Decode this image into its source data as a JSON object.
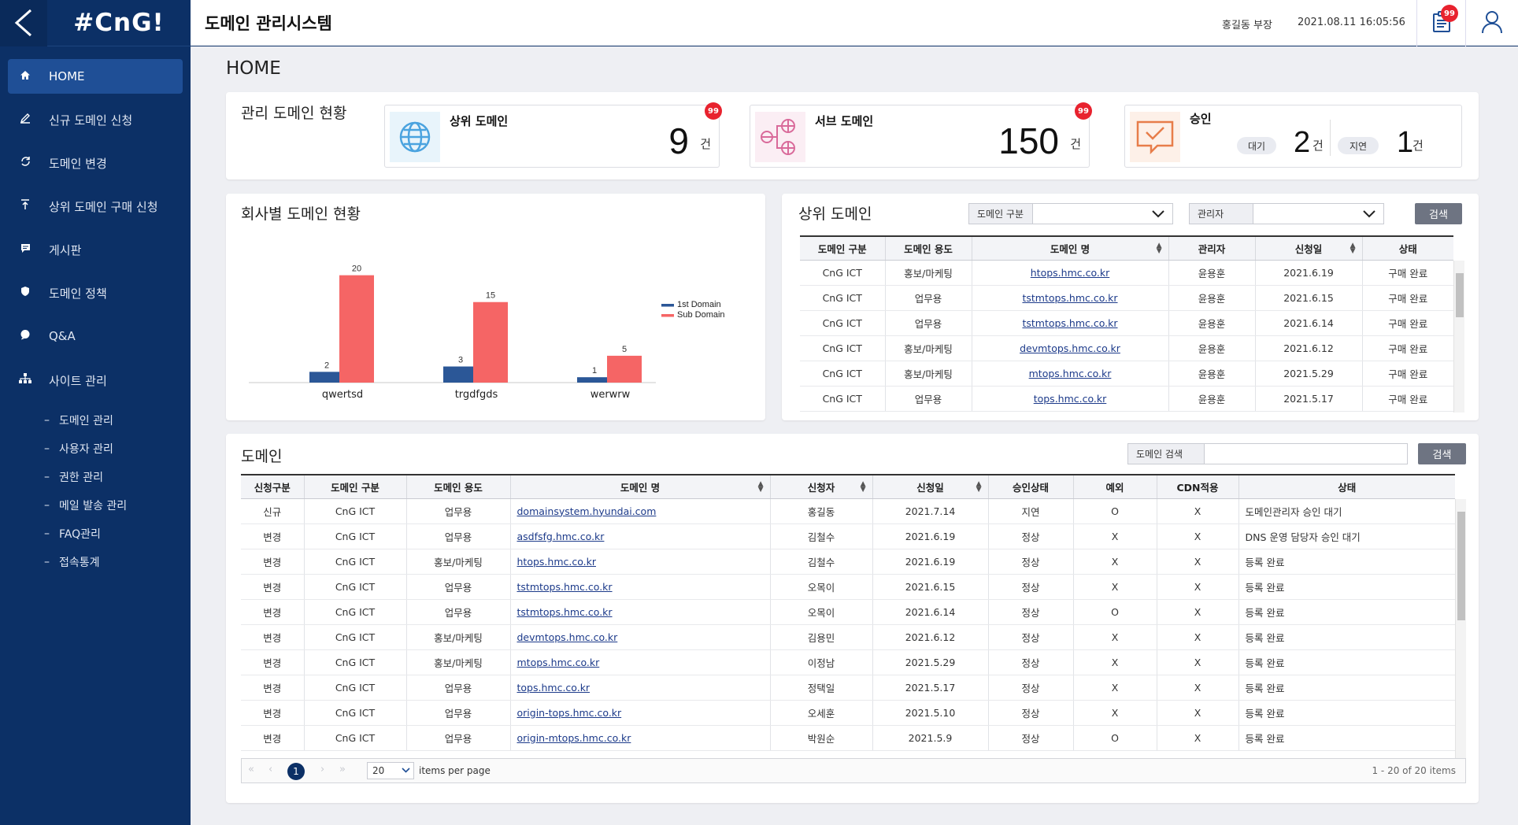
{
  "sidebar": {
    "logo": "#CnG!",
    "back_icon": "chevron-left-icon",
    "items": [
      {
        "label": "HOME",
        "icon": "home-icon",
        "active": true
      },
      {
        "label": "신규 도메인 신청",
        "icon": "pen-icon"
      },
      {
        "label": "도메인 변경",
        "icon": "swap-icon"
      },
      {
        "label": "상위 도메인 구매 신청",
        "icon": "upload-icon"
      },
      {
        "label": "게시판",
        "icon": "board-icon"
      },
      {
        "label": "도메인 정책",
        "icon": "shield-icon"
      },
      {
        "label": "Q&A",
        "icon": "chat-icon"
      }
    ],
    "site_admin": {
      "label": "사이트 관리",
      "icon": "sitemap-icon",
      "sub_items": [
        "도메인 관리",
        "사용자 관리",
        "권한 관리",
        "메일 발송 관리",
        "FAQ관리",
        "접속통계"
      ]
    }
  },
  "topbar": {
    "title": "도메인 관리시스템",
    "user": "홍길동 부장",
    "datetime": "2021.08.11  16:05:56",
    "notice_badge": "99"
  },
  "page_heading": "HOME",
  "summary": {
    "title": "관리 도메인 현황",
    "top_domain": {
      "label": "상위 도메인",
      "count": "9",
      "unit": "건",
      "badge": "99"
    },
    "sub_domain": {
      "label": "서브 도메인",
      "count": "150",
      "unit": "건",
      "badge": "99"
    },
    "approval": {
      "label": "승인",
      "wait_label": "대기",
      "wait_count": "2",
      "delay_label": "지연",
      "delay_count": "1",
      "unit": "건"
    }
  },
  "company_chart": {
    "title": "회사별 도메인 현황",
    "chart_data": {
      "type": "bar",
      "categories": [
        "qwertsd",
        "trgdfgds",
        "werwrw"
      ],
      "series": [
        {
          "name": "1st Domain",
          "values": [
            2,
            3,
            1
          ],
          "color": "#2b5797"
        },
        {
          "name": "Sub Domain",
          "values": [
            20,
            15,
            5
          ],
          "color": "#f56565"
        }
      ],
      "ylim": [
        0,
        22
      ],
      "legend": "right",
      "grid": false
    }
  },
  "top_domains": {
    "title": "상위 도메인",
    "filter1_label": "도메인 구분",
    "filter2_label": "관리자",
    "search_btn": "검색",
    "columns": [
      "도메인 구분",
      "도메인 용도",
      "도메인 명",
      "관리자",
      "신청일",
      "상태"
    ],
    "rows": [
      [
        "CnG ICT",
        "홍보/마케팅",
        "htops.hmc.co.kr",
        "윤용훈",
        "2021.6.19",
        "구매 완료"
      ],
      [
        "CnG ICT",
        "업무용",
        "tstmtops.hmc.co.kr",
        "윤용훈",
        "2021.6.15",
        "구매 완료"
      ],
      [
        "CnG ICT",
        "업무용",
        "tstmtops.hmc.co.kr",
        "윤용훈",
        "2021.6.14",
        "구매 완료"
      ],
      [
        "CnG ICT",
        "홍보/마케팅",
        "devmtops.hmc.co.kr",
        "윤용훈",
        "2021.6.12",
        "구매 완료"
      ],
      [
        "CnG ICT",
        "홍보/마케팅",
        "mtops.hmc.co.kr",
        "윤용훈",
        "2021.5.29",
        "구매 완료"
      ],
      [
        "CnG ICT",
        "업무용",
        "tops.hmc.co.kr",
        "윤용훈",
        "2021.5.17",
        "구매 완료"
      ]
    ]
  },
  "domains": {
    "title": "도메인",
    "search_label": "도메인 검색",
    "search_btn": "검색",
    "columns": [
      "신청구분",
      "도메인 구분",
      "도메인 용도",
      "도메인 명",
      "신청자",
      "신청일",
      "승인상태",
      "예외",
      "CDN적용",
      "상태"
    ],
    "rows": [
      [
        "신규",
        "CnG ICT",
        "업무용",
        "domainsystem.hyundai.com",
        "홍길동",
        "2021.7.14",
        "지연",
        "O",
        "X",
        "도메인관리자 승인 대기"
      ],
      [
        "변경",
        "CnG ICT",
        "업무용",
        "asdfsfg.hmc.co.kr",
        "김철수",
        "2021.6.19",
        "정상",
        "X",
        "X",
        "DNS 운영 담당자 승인 대기"
      ],
      [
        "변경",
        "CnG ICT",
        "홍보/마케팅",
        "htops.hmc.co.kr",
        "김철수",
        "2021.6.19",
        "정상",
        "X",
        "X",
        "등록 완료"
      ],
      [
        "변경",
        "CnG ICT",
        "업무용",
        "tstmtops.hmc.co.kr",
        "오목이",
        "2021.6.15",
        "정상",
        "X",
        "X",
        "등록 완료"
      ],
      [
        "변경",
        "CnG ICT",
        "업무용",
        "tstmtops.hmc.co.kr",
        "오목이",
        "2021.6.14",
        "정상",
        "O",
        "X",
        "등록 완료"
      ],
      [
        "변경",
        "CnG ICT",
        "홍보/마케팅",
        "devmtops.hmc.co.kr",
        "김용민",
        "2021.6.12",
        "정상",
        "X",
        "X",
        "등록 완료"
      ],
      [
        "변경",
        "CnG ICT",
        "홍보/마케팅",
        "mtops.hmc.co.kr",
        "이정남",
        "2021.5.29",
        "정상",
        "X",
        "X",
        "등록 완료"
      ],
      [
        "변경",
        "CnG ICT",
        "업무용",
        "tops.hmc.co.kr",
        "정택일",
        "2021.5.17",
        "정상",
        "X",
        "X",
        "등록 완료"
      ],
      [
        "변경",
        "CnG ICT",
        "업무용",
        "origin-tops.hmc.co.kr",
        "오세훈",
        "2021.5.10",
        "정상",
        "X",
        "X",
        "등록 완료"
      ],
      [
        "변경",
        "CnG ICT",
        "업무용",
        "origin-mtops.hmc.co.kr",
        "박원순",
        "2021.5.9",
        "정상",
        "O",
        "X",
        "등록 완료"
      ]
    ],
    "pager": {
      "current": "1",
      "page_size": "20",
      "page_size_label": "items per page",
      "summary": "1 - 20 of 20 items"
    }
  }
}
